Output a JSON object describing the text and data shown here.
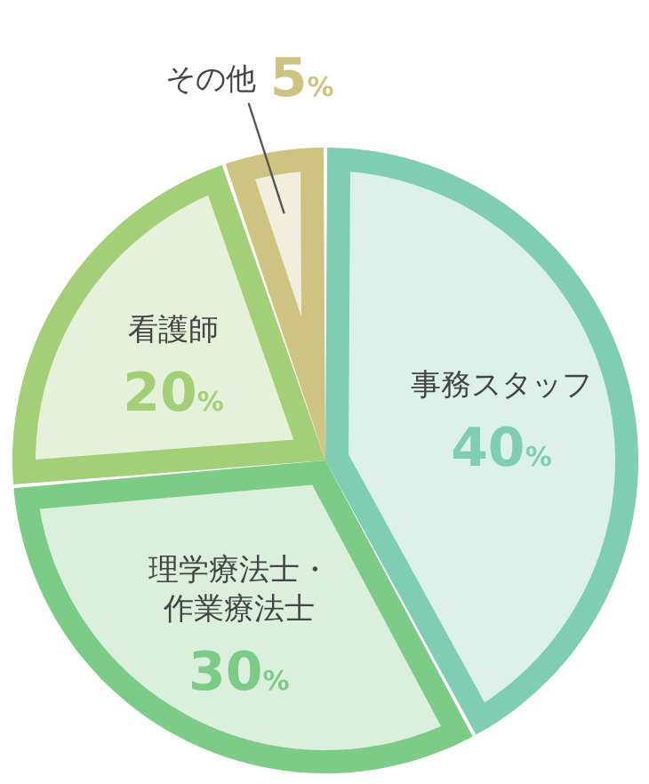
{
  "chart_data": {
    "type": "pie",
    "categories": [
      "事務スタッフ",
      "理学療法士・作業療法士",
      "看護師",
      "その他"
    ],
    "values": [
      40,
      30,
      20,
      5
    ],
    "colors": [
      "#7fcdb2",
      "#7ccb86",
      "#a3cf78",
      "#cfc383"
    ],
    "value_labels": [
      "40%",
      "30%",
      "20%",
      "5%"
    ]
  }
}
